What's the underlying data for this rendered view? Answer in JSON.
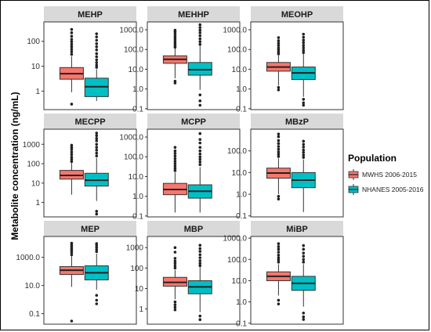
{
  "chart_data": {
    "type": "box",
    "ylabel": "Metabolite concentration (ng/mL)",
    "y_scale": "log10",
    "legend": {
      "title": "Population",
      "placement": "right",
      "entries": [
        {
          "name": "MWHS 2006-2015",
          "color": "#F8766D"
        },
        {
          "name": "NHANES 2005-2016",
          "color": "#00BFC4"
        }
      ]
    },
    "panels": [
      {
        "title": "MEHP",
        "ylim": [
          0.18,
          600
        ],
        "ticks": [
          1,
          10,
          100
        ],
        "tick_labels": [
          "1",
          "10",
          "100"
        ],
        "boxes": [
          {
            "series": "MWHS 2006-2015",
            "whisker_low": 0.9,
            "q1": 3.0,
            "median": 5.0,
            "q3": 8.8,
            "whisker_high": 25,
            "outliers": [
              0.3,
              30,
              38,
              48,
              60,
              75,
              95,
              120,
              160,
              220,
              300
            ]
          },
          {
            "series": "NHANES 2005-2016",
            "whisker_low": 0.4,
            "q1": 0.6,
            "median": 1.5,
            "q3": 3.3,
            "whisker_high": 7.5,
            "outliers": [
              9,
              11,
              14,
              18,
              24,
              32,
              45,
              60,
              80,
              110,
              150,
              200
            ]
          }
        ]
      },
      {
        "title": "MEHHP",
        "ylim": [
          0.09,
          2500
        ],
        "ticks": [
          0.1,
          1,
          10,
          100,
          1000
        ],
        "tick_labels": [
          "0.1",
          "1.0",
          "10.0",
          "100.0",
          "1000.0"
        ],
        "boxes": [
          {
            "series": "MWHS 2006-2015",
            "whisker_low": 3.5,
            "q1": 20,
            "median": 32,
            "q3": 48,
            "whisker_high": 110,
            "outliers": [
              2.0,
              2.5,
              130,
              160,
              200,
              250,
              320,
              400,
              500,
              650,
              800,
              950
            ]
          },
          {
            "series": "NHANES 2005-2016",
            "whisker_low": 0.9,
            "q1": 5,
            "median": 9.5,
            "q3": 22,
            "whisker_high": 150,
            "outliers": [
              0.15,
              0.25,
              0.5,
              180,
              250,
              350,
              500,
              700,
              950,
              1300,
              1800
            ]
          }
        ]
      },
      {
        "title": "MEOHP",
        "ylim": [
          0.09,
          2500
        ],
        "ticks": [
          0.1,
          1,
          10,
          100,
          1000
        ],
        "tick_labels": [
          "0.1",
          "1.0",
          "10.0",
          "100.0",
          "1000.0"
        ],
        "boxes": [
          {
            "series": "MWHS 2006-2015",
            "whisker_low": 1.5,
            "q1": 8,
            "median": 13,
            "q3": 22,
            "whisker_high": 50,
            "outliers": [
              0.9,
              1.2,
              60,
              75,
              95,
              120,
              160,
              210,
              280,
              400
            ]
          },
          {
            "series": "NHANES 2005-2016",
            "whisker_low": 0.4,
            "q1": 3,
            "median": 6.5,
            "q3": 13,
            "whisker_high": 60,
            "outliers": [
              0.15,
              0.2,
              0.3,
              70,
              90,
              120,
              160,
              220,
              300,
              420,
              600
            ]
          }
        ]
      },
      {
        "title": "MECPP",
        "ylim": [
          0.18,
          6000
        ],
        "ticks": [
          1,
          10,
          100,
          1000
        ],
        "tick_labels": [
          "1",
          "10",
          "100",
          "1000"
        ],
        "boxes": [
          {
            "series": "MWHS 2006-2015",
            "whisker_low": 2.5,
            "q1": 16,
            "median": 25,
            "q3": 45,
            "whisker_high": 110,
            "outliers": [
              130,
              170,
              220,
              300,
              400,
              550,
              700,
              900
            ]
          },
          {
            "series": "NHANES 2005-2016",
            "whisker_low": 1.2,
            "q1": 7,
            "median": 14,
            "q3": 32,
            "whisker_high": 200,
            "outliers": [
              0.25,
              0.35,
              250,
              350,
              500,
              700,
              1000,
              1500,
              2000,
              2800,
              3800
            ]
          }
        ]
      },
      {
        "title": "MCPP",
        "ylim": [
          0.09,
          2500
        ],
        "ticks": [
          0.1,
          1,
          10,
          100,
          1000
        ],
        "tick_labels": [
          "0.1",
          "1.0",
          "10.0",
          "100.0",
          "1000.0"
        ],
        "boxes": [
          {
            "series": "MWHS 2006-2015",
            "whisker_low": 0.15,
            "q1": 1.2,
            "median": 2.2,
            "q3": 4.5,
            "whisker_high": 16,
            "outliers": [
              20,
              26,
              34,
              45,
              60,
              80,
              110,
              150,
              200,
              300
            ]
          },
          {
            "series": "NHANES 2005-2016",
            "whisker_low": 0.15,
            "q1": 0.8,
            "median": 1.8,
            "q3": 3.8,
            "whisker_high": 30,
            "outliers": [
              40,
              55,
              75,
              100,
              140,
              200,
              300,
              500,
              750,
              1500
            ]
          }
        ]
      },
      {
        "title": "MBzP",
        "ylim": [
          0.09,
          1000
        ],
        "ticks": [
          0.1,
          1,
          10,
          100
        ],
        "tick_labels": [
          "0.1",
          "1.0",
          "10.0",
          "100.0"
        ],
        "boxes": [
          {
            "series": "MWHS 2006-2015",
            "whisker_low": 1.0,
            "q1": 5.5,
            "median": 9.5,
            "q3": 16,
            "whisker_high": 45,
            "outliers": [
              0.6,
              0.8,
              55,
              70,
              90,
              120,
              160,
              220,
              300,
              450,
              600
            ]
          },
          {
            "series": "NHANES 2005-2016",
            "whisker_low": 0.15,
            "q1": 2,
            "median": 4.5,
            "q3": 10,
            "whisker_high": 40,
            "outliers": [
              50,
              65,
              85,
              110,
              150,
              200,
              280
            ]
          }
        ]
      },
      {
        "title": "MEP",
        "ylim": [
          0.018,
          30000
        ],
        "ticks": [
          0.1,
          10,
          1000
        ],
        "tick_labels": [
          "0.1",
          "10.0",
          "1000.0"
        ],
        "boxes": [
          {
            "series": "MWHS 2006-2015",
            "whisker_low": 8,
            "q1": 60,
            "median": 120,
            "q3": 220,
            "whisker_high": 1200,
            "outliers": [
              0.03,
              1500,
              2200,
              3000,
              4000,
              5500,
              7500,
              10000
            ]
          },
          {
            "series": "NHANES 2005-2016",
            "whisker_low": 5,
            "q1": 25,
            "median": 80,
            "q3": 250,
            "whisker_high": 1800,
            "outliers": [
              0.5,
              0.9,
              2.0,
              2500,
              3500,
              5000,
              7000,
              9500
            ]
          }
        ]
      },
      {
        "title": "MBP",
        "ylim": [
          0.18,
          3500
        ],
        "ticks": [
          1,
          10,
          100,
          1000
        ],
        "tick_labels": [
          "1",
          "10",
          "100",
          "1000"
        ],
        "boxes": [
          {
            "series": "MWHS 2006-2015",
            "whisker_low": 3,
            "q1": 13,
            "median": 20,
            "q3": 35,
            "whisker_high": 80,
            "outliers": [
              0.9,
              1.2,
              1.6,
              2.2,
              100,
              130,
              170,
              220,
              300,
              600,
              1000
            ]
          },
          {
            "series": "NHANES 2005-2016",
            "whisker_low": 0.7,
            "q1": 5.5,
            "median": 12,
            "q3": 24,
            "whisker_high": 110,
            "outliers": [
              0.3,
              0.45,
              130,
              170,
              230,
              320,
              450,
              650,
              900,
              1300
            ]
          }
        ]
      },
      {
        "title": "MiBP",
        "ylim": [
          0.09,
          1200
        ],
        "ticks": [
          0.1,
          1,
          10,
          100,
          1000
        ],
        "tick_labels": [
          "0.1",
          "1.0",
          "10.0",
          "100.0",
          "1000.0"
        ],
        "boxes": [
          {
            "series": "MWHS 2006-2015",
            "whisker_low": 2,
            "q1": 10,
            "median": 16,
            "q3": 26,
            "whisker_high": 60,
            "outliers": [
              0.8,
              1.2,
              75,
              95,
              120,
              160,
              220,
              300,
              400,
              550
            ]
          },
          {
            "series": "NHANES 2005-2016",
            "whisker_low": 0.6,
            "q1": 3.5,
            "median": 7.5,
            "q3": 16,
            "whisker_high": 60,
            "outliers": [
              0.15,
              0.2,
              0.3,
              75,
              100,
              140,
              200,
              300,
              450
            ]
          }
        ]
      }
    ]
  }
}
